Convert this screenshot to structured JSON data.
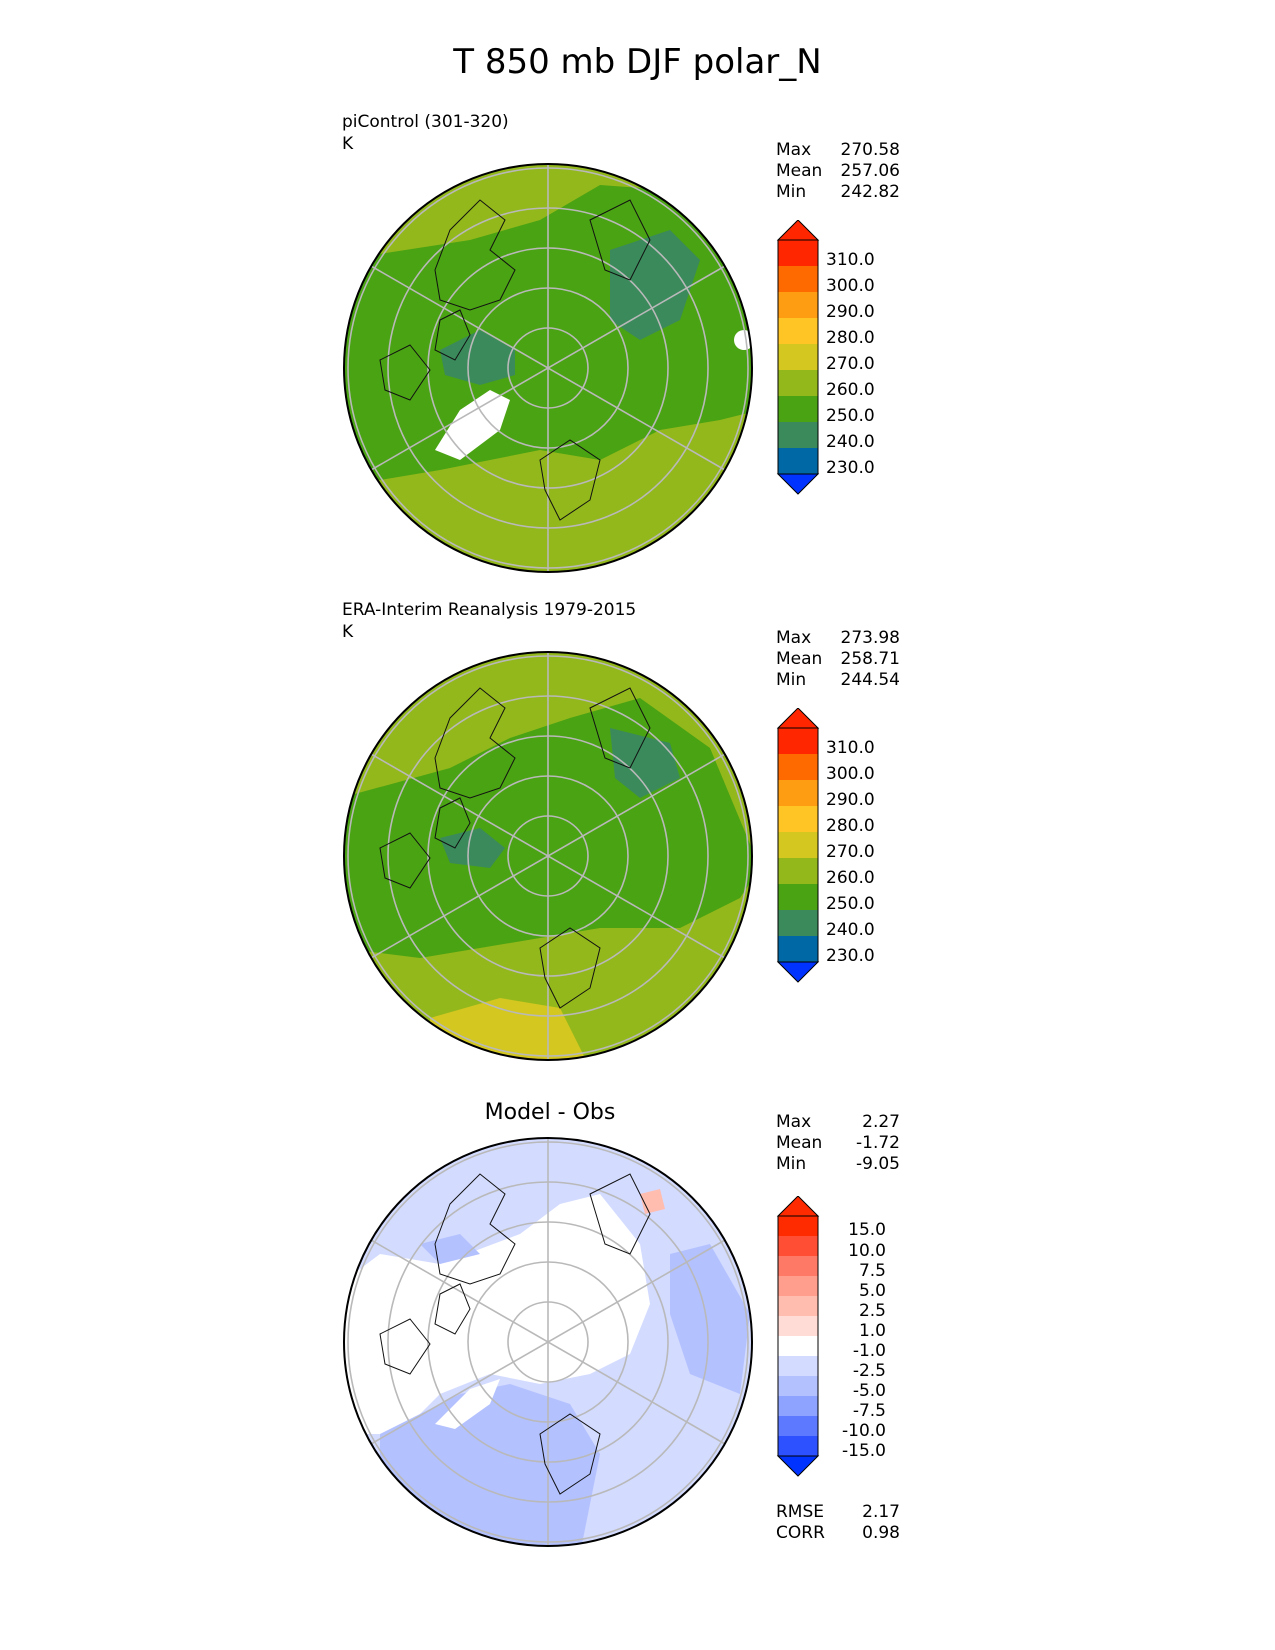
{
  "figure": {
    "title": "T 850 mb DJF polar_N"
  },
  "panels": [
    {
      "subtitle": "piControl (301-320)",
      "units": "K",
      "stats": [
        {
          "label": "Max",
          "value": "270.58"
        },
        {
          "label": "Mean",
          "value": "257.06"
        },
        {
          "label": "Min",
          "value": "242.82"
        }
      ]
    },
    {
      "subtitle": "ERA-Interim Reanalysis 1979-2015",
      "units": "K",
      "stats": [
        {
          "label": "Max",
          "value": "273.98"
        },
        {
          "label": "Mean",
          "value": "258.71"
        },
        {
          "label": "Min",
          "value": "244.54"
        }
      ]
    },
    {
      "title": "Model - Obs",
      "stats": [
        {
          "label": "Max",
          "value": "2.27"
        },
        {
          "label": "Mean",
          "value": "-1.72"
        },
        {
          "label": "Min",
          "value": "-9.05"
        }
      ],
      "metrics": [
        {
          "label": "RMSE",
          "value": "2.17"
        },
        {
          "label": "CORR",
          "value": "0.98"
        }
      ]
    }
  ],
  "colorbars": {
    "field": {
      "labels": [
        "310.0",
        "300.0",
        "290.0",
        "280.0",
        "270.0",
        "260.0",
        "250.0",
        "240.0",
        "230.0"
      ],
      "colors": [
        "#ff2600",
        "#ff6a00",
        "#ff9d12",
        "#ffc524",
        "#d3c720",
        "#93b81b",
        "#4aa313",
        "#3a8a5c",
        "#0068a5",
        "#0033ff"
      ]
    },
    "diff": {
      "labels": [
        "15.0",
        "10.0",
        "7.5",
        "5.0",
        "2.5",
        "1.0",
        "-1.0",
        "-2.5",
        "-5.0",
        "-7.5",
        "-10.0",
        "-15.0"
      ],
      "colors": [
        "#ff2b00",
        "#ff4e33",
        "#ff7a66",
        "#ff9e8c",
        "#ffbdb0",
        "#ffdcd5",
        "#ffffff",
        "#d3dbff",
        "#b3c1ff",
        "#8ea2ff",
        "#5c79ff",
        "#2e51ff",
        "#0033ff"
      ]
    }
  }
}
